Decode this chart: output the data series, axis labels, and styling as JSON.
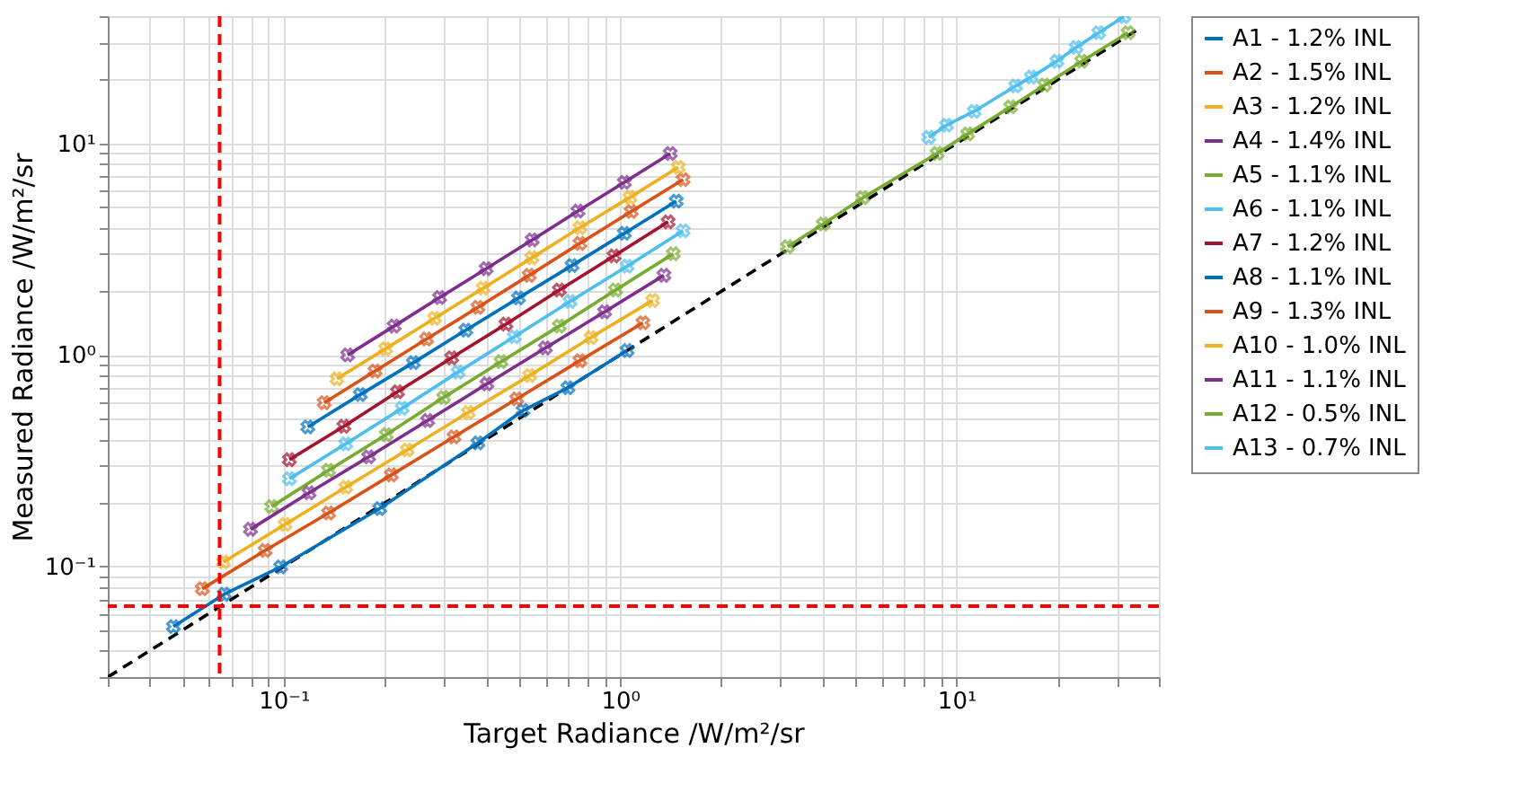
{
  "chart_data": {
    "type": "line",
    "xlabel": "Target Radiance /W/m²/sr",
    "ylabel": "Measured Radiance /W/m²/sr",
    "log": "xy",
    "grid": true,
    "legend": "right",
    "marker": "cross",
    "line_style": "solid",
    "xlim": [
      0.03,
      40
    ],
    "ylim": [
      0.03,
      40
    ],
    "xticks": [
      {
        "value": 0.03,
        "label": null
      },
      {
        "value": 0.04,
        "label": null
      },
      {
        "value": 0.05,
        "label": null
      },
      {
        "value": 0.06,
        "label": null
      },
      {
        "value": 0.07,
        "label": null
      },
      {
        "value": 0.08,
        "label": null
      },
      {
        "value": 0.09,
        "label": null
      },
      {
        "value": 0.1,
        "label": "10⁻¹"
      },
      {
        "value": 0.2,
        "label": null
      },
      {
        "value": 0.3,
        "label": null
      },
      {
        "value": 0.4,
        "label": null
      },
      {
        "value": 0.5,
        "label": null
      },
      {
        "value": 0.6,
        "label": null
      },
      {
        "value": 0.7,
        "label": null
      },
      {
        "value": 0.8,
        "label": null
      },
      {
        "value": 0.9,
        "label": null
      },
      {
        "value": 1,
        "label": "10⁰"
      },
      {
        "value": 2,
        "label": null
      },
      {
        "value": 3,
        "label": null
      },
      {
        "value": 4,
        "label": null
      },
      {
        "value": 5,
        "label": null
      },
      {
        "value": 6,
        "label": null
      },
      {
        "value": 7,
        "label": null
      },
      {
        "value": 8,
        "label": null
      },
      {
        "value": 9,
        "label": null
      },
      {
        "value": 10,
        "label": "10¹"
      },
      {
        "value": 20,
        "label": null
      },
      {
        "value": 30,
        "label": null
      },
      {
        "value": 40,
        "label": null
      }
    ],
    "yticks": [
      {
        "value": 0.03,
        "label": null
      },
      {
        "value": 0.04,
        "label": null
      },
      {
        "value": 0.05,
        "label": null
      },
      {
        "value": 0.06,
        "label": null
      },
      {
        "value": 0.07,
        "label": null
      },
      {
        "value": 0.08,
        "label": null
      },
      {
        "value": 0.09,
        "label": null
      },
      {
        "value": 0.1,
        "label": "10⁻¹"
      },
      {
        "value": 0.2,
        "label": null
      },
      {
        "value": 0.3,
        "label": null
      },
      {
        "value": 0.4,
        "label": null
      },
      {
        "value": 0.5,
        "label": null
      },
      {
        "value": 0.6,
        "label": null
      },
      {
        "value": 0.7,
        "label": null
      },
      {
        "value": 0.8,
        "label": null
      },
      {
        "value": 0.9,
        "label": null
      },
      {
        "value": 1,
        "label": "10⁰"
      },
      {
        "value": 2,
        "label": null
      },
      {
        "value": 3,
        "label": null
      },
      {
        "value": 4,
        "label": null
      },
      {
        "value": 5,
        "label": null
      },
      {
        "value": 6,
        "label": null
      },
      {
        "value": 7,
        "label": null
      },
      {
        "value": 8,
        "label": null
      },
      {
        "value": 9,
        "label": null
      },
      {
        "value": 10,
        "label": "10¹"
      },
      {
        "value": 20,
        "label": null
      },
      {
        "value": 30,
        "label": null
      },
      {
        "value": 40,
        "label": null
      }
    ],
    "ref_lines": [
      {
        "axis": "x",
        "value": 0.0645,
        "color": "#ff0000",
        "line_style": "dashed"
      },
      {
        "axis": "y",
        "value": 0.065,
        "color": "#ff0000",
        "line_style": "dashed"
      }
    ],
    "series": [
      {
        "name": "A1 - 1.2% INL",
        "color": "#0072bd",
        "x": [
          0.047,
          0.0666,
          0.098,
          0.193,
          0.378,
          0.515,
          0.7,
          1.05
        ],
        "values": [
          0.052,
          0.074,
          0.0996,
          0.188,
          0.384,
          0.547,
          0.7,
          1.05
        ]
      },
      {
        "name": "A2 - 1.5% INL",
        "color": "#d95319",
        "x": [
          0.0573,
          0.0881,
          0.136,
          0.209,
          0.321,
          0.493,
          0.76,
          1.17
        ],
        "values": [
          0.0785,
          0.119,
          0.179,
          0.271,
          0.41,
          0.62,
          0.94,
          1.42
        ]
      },
      {
        "name": "A3 - 1.2% INL",
        "color": "#edb120",
        "x": [
          0.0662,
          0.101,
          0.153,
          0.233,
          0.354,
          0.539,
          0.82,
          1.25
        ],
        "values": [
          0.105,
          0.158,
          0.237,
          0.356,
          0.535,
          0.8,
          1.21,
          1.81
        ]
      },
      {
        "name": "A4 - 1.4% INL",
        "color": "#7e2f8e",
        "x": [
          0.155,
          0.213,
          0.291,
          0.4,
          0.548,
          0.75,
          1.03,
          1.41
        ],
        "values": [
          1.0,
          1.37,
          1.87,
          2.56,
          3.5,
          4.79,
          6.55,
          8.97
        ]
      },
      {
        "name": "A5 - 1.1% INL",
        "color": "#77ac30",
        "x": [
          0.0921,
          0.136,
          0.202,
          0.299,
          0.443,
          0.66,
          0.97,
          1.44
        ],
        "values": [
          0.192,
          0.285,
          0.42,
          0.63,
          0.93,
          1.37,
          2.03,
          3.01
        ]
      },
      {
        "name": "A6 - 1.1% INL",
        "color": "#4dbeee",
        "x": [
          0.104,
          0.153,
          0.225,
          0.33,
          0.485,
          0.71,
          1.05,
          1.54
        ],
        "values": [
          0.26,
          0.38,
          0.56,
          0.83,
          1.22,
          1.79,
          2.63,
          3.87
        ]
      },
      {
        "name": "A7 - 1.2% INL",
        "color": "#a2142f",
        "x": [
          0.104,
          0.151,
          0.218,
          0.316,
          0.458,
          0.66,
          0.96,
          1.39
        ],
        "values": [
          0.32,
          0.46,
          0.67,
          0.97,
          1.4,
          2.03,
          2.94,
          4.26
        ]
      },
      {
        "name": "A8 - 1.1% INL",
        "color": "#0072bd",
        "x": [
          0.118,
          0.169,
          0.243,
          0.348,
          0.499,
          0.72,
          1.03,
          1.47
        ],
        "values": [
          0.457,
          0.65,
          0.92,
          1.31,
          1.86,
          2.65,
          3.76,
          5.34
        ]
      },
      {
        "name": "A9 - 1.3% INL",
        "color": "#d95319",
        "x": [
          0.132,
          0.187,
          0.266,
          0.378,
          0.537,
          0.76,
          1.08,
          1.54
        ],
        "values": [
          0.595,
          0.84,
          1.19,
          1.68,
          2.38,
          3.37,
          4.77,
          6.75
        ]
      },
      {
        "name": "A10 - 1.0% INL",
        "color": "#edb120",
        "x": [
          0.144,
          0.201,
          0.281,
          0.392,
          0.547,
          0.76,
          1.07,
          1.49
        ],
        "values": [
          0.772,
          1.07,
          1.49,
          2.07,
          2.88,
          4.0,
          5.56,
          7.72
        ]
      },
      {
        "name": "A11 - 1.1% INL",
        "color": "#7e2f8e",
        "x": [
          0.0797,
          0.119,
          0.179,
          0.268,
          0.402,
          0.6,
          0.9,
          1.35
        ],
        "values": [
          0.15,
          0.223,
          0.33,
          0.49,
          0.73,
          1.08,
          1.6,
          2.38
        ]
      },
      {
        "name": "A12 - 0.5% INL",
        "color": "#77ac30",
        "x": [
          3.15,
          4.02,
          5.27,
          8.77,
          10.8,
          14.5,
          18.3,
          23.6,
          32.4
        ],
        "values": [
          3.25,
          4.16,
          5.54,
          8.98,
          11.1,
          14.9,
          18.9,
          24.5,
          33.4
        ]
      },
      {
        "name": "A13 - 0.7% INL",
        "color": "#4dbeee",
        "x": [
          8.28,
          9.35,
          11.3,
          15.0,
          16.7,
          19.9,
          22.7,
          26.5,
          31.5
        ],
        "values": [
          10.7,
          12.2,
          14.2,
          18.7,
          20.6,
          24.5,
          28.5,
          33.4,
          39.8
        ]
      },
      {
        "color": "#000000",
        "type": "line",
        "marker": "none",
        "line_style": "dashed",
        "x": [
          0.03,
          35
        ],
        "values": [
          0.03,
          35
        ]
      }
    ]
  }
}
